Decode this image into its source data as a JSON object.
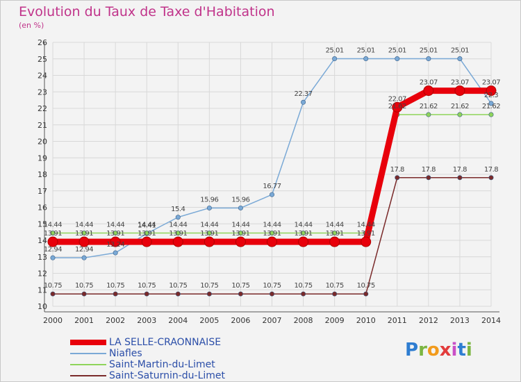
{
  "header": {
    "title": "Evolution du Taux de Taxe d'Habitation",
    "subtitle": "(en %)"
  },
  "logo": {
    "text": "Proxiti",
    "letter_colors": [
      "#2e7dd1",
      "#7bb541",
      "#f29b1c",
      "#e23b3b",
      "#c94fc6",
      "#2e7dd1",
      "#7bb541"
    ]
  },
  "colors": {
    "background": "#f3f3f3",
    "grid": "#d8d8d8",
    "axis": "#555555",
    "tick_text": "#333333",
    "data_label": "#444444",
    "title": "#c0338a",
    "legend_text": "#2b4ea8"
  },
  "chart_data": {
    "type": "line",
    "title": "Evolution du Taux de Taxe d'Habitation",
    "subtitle": "(en %)",
    "xlabel": "",
    "ylabel": "",
    "ylim": [
      10,
      26
    ],
    "grid": true,
    "legend_position": "bottom-left",
    "yticks": [
      "10",
      "11",
      "12",
      "13",
      "14",
      "15",
      "16",
      "17",
      "18",
      "19",
      "20",
      "21",
      "22",
      "23",
      "24",
      "25",
      "26"
    ],
    "x": [
      "2000",
      "2001",
      "2002",
      "2003",
      "2004",
      "2005",
      "2006",
      "2007",
      "2008",
      "2009",
      "2010",
      "2011",
      "2012",
      "2013",
      "2014"
    ],
    "series": [
      {
        "name": "LA SELLE-CRAONNAISE",
        "color": "#e8000b",
        "values": [
          13.91,
          13.91,
          13.91,
          13.91,
          13.91,
          13.91,
          13.91,
          13.91,
          13.91,
          13.91,
          13.91,
          22.07,
          23.07,
          23.07,
          23.07
        ],
        "labels": [
          "13.91",
          "13.91",
          "13.91",
          "13.91",
          "13.91",
          "13.91",
          "13.91",
          "13.91",
          "13.91",
          "13.91",
          "13.91",
          "22.07",
          "23.07",
          "23.07",
          "23.07"
        ]
      },
      {
        "name": "Niafles",
        "color": "#7aa9d6",
        "values": [
          12.94,
          12.94,
          13.24,
          14.41,
          15.4,
          15.96,
          15.96,
          16.77,
          22.37,
          25.01,
          25.01,
          25.01,
          25.01,
          25.01,
          22.3
        ],
        "labels": [
          "12.94",
          "12.94",
          "13.24",
          "14.41",
          "15.4",
          "15.96",
          "15.96",
          "16.77",
          "22.37",
          "25.01",
          "25.01",
          "25.01",
          "25.01",
          "25.01",
          "22.3"
        ]
      },
      {
        "name": "Saint-Martin-du-Limet",
        "color": "#8fd45a",
        "values": [
          14.44,
          14.44,
          14.44,
          14.44,
          14.44,
          14.44,
          14.44,
          14.44,
          14.44,
          14.44,
          14.44,
          21.62,
          21.62,
          21.62,
          21.62
        ],
        "labels": [
          "14.44",
          "14.44",
          "14.44",
          "14.44",
          "14.44",
          "14.44",
          "14.44",
          "14.44",
          "14.44",
          "14.44",
          "14.44",
          "21.62",
          "21.62",
          "21.62",
          "21.62"
        ]
      },
      {
        "name": "Saint-Saturnin-du-Limet",
        "color": "#7a2a2a",
        "values": [
          10.75,
          10.75,
          10.75,
          10.75,
          10.75,
          10.75,
          10.75,
          10.75,
          10.75,
          10.75,
          10.75,
          17.8,
          17.8,
          17.8,
          17.8
        ],
        "labels": [
          "10.75",
          "10.75",
          "10.75",
          "10.75",
          "10.75",
          "10.75",
          "10.75",
          "10.75",
          "10.75",
          "10.75",
          "10.75",
          "17.8",
          "17.8",
          "17.8",
          "17.8"
        ]
      }
    ]
  }
}
